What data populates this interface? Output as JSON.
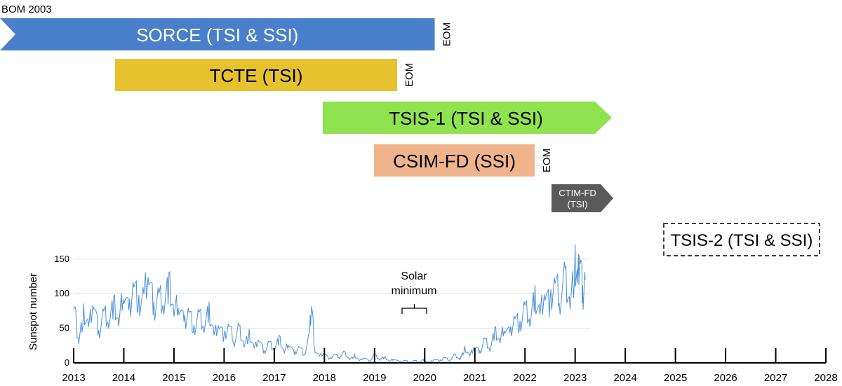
{
  "header_label": "BOM 2003",
  "missions": [
    {
      "label": "SORCE (TSI & SSI)",
      "color": "#4a7fcb",
      "text_color": "#ffffff",
      "start": "2013.0",
      "end": "2020.2",
      "eom": "EOM"
    },
    {
      "label": "TCTE (TSI)",
      "color": "#e6c22e",
      "text_color": "#000000",
      "start": "2013.8",
      "end": "2019.4",
      "eom": "EOM"
    },
    {
      "label": "TSIS-1 (TSI & SSI)",
      "color": "#8ee34e",
      "text_color": "#000000",
      "start": "2018.0",
      "end": "2023.3",
      "eom": ""
    },
    {
      "label": "CSIM-FD (SSI)",
      "color": "#f0b48d",
      "text_color": "#000000",
      "start": "2019.0",
      "end": "2022.2",
      "eom": "EOM"
    },
    {
      "label_line1": "CTIM-FD",
      "label_line2": "(TSI)",
      "color": "#5a5a5a",
      "text_color": "#ffffff",
      "start": "2022.2",
      "end": "2023.3"
    },
    {
      "label": "TSIS-2 (TSI & SSI)",
      "style": "dashed",
      "start": "2024.8",
      "end": "2026.8"
    }
  ],
  "annotation": {
    "line1": "Solar",
    "line2": "minimum",
    "span": [
      "2019.6",
      "2020.1"
    ]
  },
  "chart_data": {
    "type": "line",
    "ylabel": "Sunspot number",
    "xlabel": "",
    "xlim": [
      2013,
      2028
    ],
    "ylim": [
      0,
      170
    ],
    "yticks": [
      0,
      50,
      100,
      150
    ],
    "xticks": [
      "2013",
      "2014",
      "2015",
      "2016",
      "2017",
      "2018",
      "2019",
      "2020",
      "2021",
      "2022",
      "2023",
      "2024",
      "2025",
      "2026",
      "2027",
      "2028"
    ],
    "grid": true,
    "series_color": "#4a90d9",
    "series": [
      {
        "values": [
          [
            2013.0,
            100
          ],
          [
            2013.05,
            55
          ],
          [
            2013.1,
            30
          ],
          [
            2013.2,
            70
          ],
          [
            2013.3,
            50
          ],
          [
            2013.4,
            90
          ],
          [
            2013.5,
            40
          ],
          [
            2013.6,
            75
          ],
          [
            2013.7,
            60
          ],
          [
            2013.8,
            85
          ],
          [
            2013.9,
            55
          ],
          [
            2014.0,
            110
          ],
          [
            2014.1,
            70
          ],
          [
            2014.2,
            120
          ],
          [
            2014.3,
            80
          ],
          [
            2014.4,
            95
          ],
          [
            2014.5,
            130
          ],
          [
            2014.6,
            75
          ],
          [
            2014.7,
            100
          ],
          [
            2014.8,
            85
          ],
          [
            2014.9,
            115
          ],
          [
            2015.0,
            70
          ],
          [
            2015.1,
            90
          ],
          [
            2015.2,
            55
          ],
          [
            2015.3,
            80
          ],
          [
            2015.4,
            45
          ],
          [
            2015.5,
            70
          ],
          [
            2015.6,
            50
          ],
          [
            2015.7,
            75
          ],
          [
            2015.8,
            40
          ],
          [
            2015.9,
            60
          ],
          [
            2016.0,
            35
          ],
          [
            2016.1,
            55
          ],
          [
            2016.2,
            30
          ],
          [
            2016.3,
            50
          ],
          [
            2016.4,
            25
          ],
          [
            2016.5,
            40
          ],
          [
            2016.6,
            20
          ],
          [
            2016.7,
            35
          ],
          [
            2016.8,
            15
          ],
          [
            2016.9,
            30
          ],
          [
            2017.0,
            20
          ],
          [
            2017.1,
            35
          ],
          [
            2017.2,
            15
          ],
          [
            2017.3,
            30
          ],
          [
            2017.4,
            12
          ],
          [
            2017.5,
            25
          ],
          [
            2017.6,
            10
          ],
          [
            2017.7,
            40
          ],
          [
            2017.75,
            90
          ],
          [
            2017.8,
            20
          ],
          [
            2017.9,
            10
          ],
          [
            2018.0,
            15
          ],
          [
            2018.1,
            5
          ],
          [
            2018.2,
            12
          ],
          [
            2018.3,
            8
          ],
          [
            2018.4,
            15
          ],
          [
            2018.5,
            5
          ],
          [
            2018.6,
            10
          ],
          [
            2018.7,
            3
          ],
          [
            2018.8,
            8
          ],
          [
            2018.9,
            2
          ],
          [
            2019.0,
            12
          ],
          [
            2019.1,
            5
          ],
          [
            2019.2,
            8
          ],
          [
            2019.3,
            2
          ],
          [
            2019.4,
            6
          ],
          [
            2019.5,
            1
          ],
          [
            2019.6,
            4
          ],
          [
            2019.7,
            0
          ],
          [
            2019.8,
            3
          ],
          [
            2019.9,
            1
          ],
          [
            2020.0,
            5
          ],
          [
            2020.1,
            0
          ],
          [
            2020.2,
            6
          ],
          [
            2020.3,
            2
          ],
          [
            2020.4,
            8
          ],
          [
            2020.5,
            3
          ],
          [
            2020.6,
            12
          ],
          [
            2020.7,
            5
          ],
          [
            2020.8,
            20
          ],
          [
            2020.9,
            10
          ],
          [
            2021.0,
            25
          ],
          [
            2021.1,
            15
          ],
          [
            2021.2,
            35
          ],
          [
            2021.3,
            20
          ],
          [
            2021.4,
            45
          ],
          [
            2021.5,
            30
          ],
          [
            2021.6,
            55
          ],
          [
            2021.7,
            40
          ],
          [
            2021.8,
            70
          ],
          [
            2021.9,
            50
          ],
          [
            2022.0,
            80
          ],
          [
            2022.1,
            60
          ],
          [
            2022.2,
            95
          ],
          [
            2022.3,
            70
          ],
          [
            2022.4,
            110
          ],
          [
            2022.5,
            80
          ],
          [
            2022.6,
            120
          ],
          [
            2022.7,
            90
          ],
          [
            2022.8,
            125
          ],
          [
            2022.9,
            85
          ],
          [
            2023.0,
            140
          ],
          [
            2023.05,
            110
          ],
          [
            2023.1,
            165
          ],
          [
            2023.15,
            95
          ],
          [
            2023.2,
            120
          ]
        ]
      }
    ]
  }
}
